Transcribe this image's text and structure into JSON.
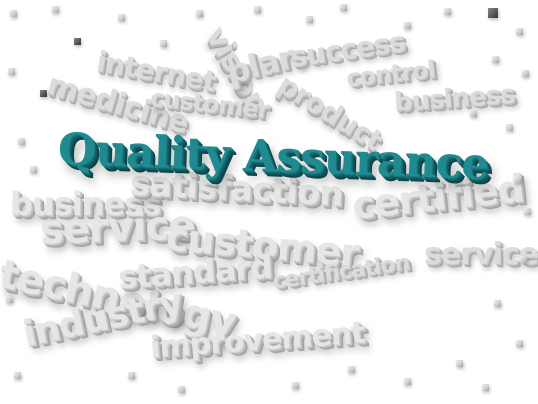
{
  "headline": "Quality Assurance",
  "words": {
    "success": "success",
    "internet": "internet",
    "control": "control",
    "medicine": "medicine",
    "business": "business",
    "product": "product",
    "customer_top": "customer",
    "business_left": "business",
    "satisfaction": "satisfaction",
    "certified": "certified",
    "service_left": "service",
    "customer": "customer",
    "service_right": "service",
    "technology": "technology",
    "standard": "standard",
    "certification": "certification",
    "industry": "industry",
    "improvement": "improvement",
    "vision": "vision",
    "plan": "plan"
  },
  "colors": {
    "headline": "#1f8a8f",
    "words": "#dcdcdc",
    "background": "#ffffff"
  }
}
